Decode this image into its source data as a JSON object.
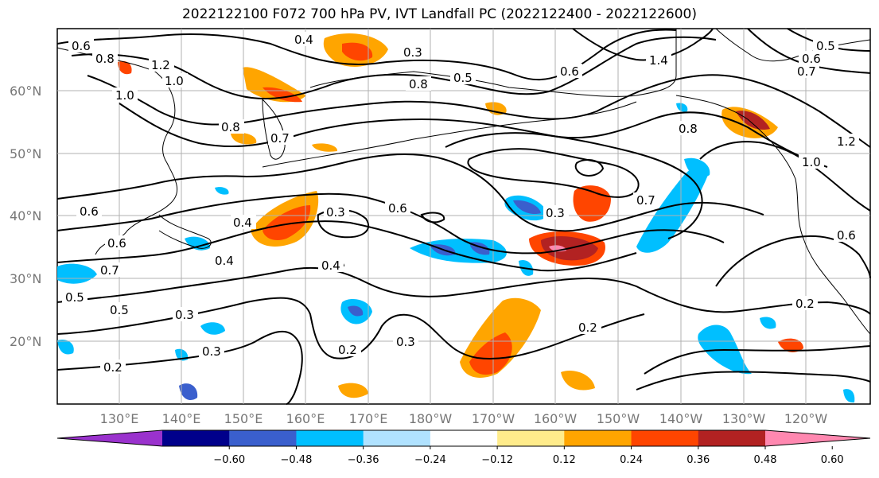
{
  "title": "2022122100 F072 700 hPa PV, IVT Landfall PC (2022122400 - 2022122600)",
  "lat_labels": [
    "60°N",
    "50°N",
    "40°N",
    "30°N",
    "20°N"
  ],
  "lon_labels": [
    "130°E",
    "140°E",
    "150°E",
    "160°E",
    "170°E",
    "180°W",
    "170°W",
    "160°W",
    "150°W",
    "140°W",
    "130°W",
    "120°W"
  ],
  "colorbar": {
    "ticks": [
      "−0.60",
      "−0.48",
      "−0.36",
      "−0.24",
      "−0.12",
      "0.12",
      "0.24",
      "0.36",
      "0.48",
      "0.60"
    ],
    "colors": [
      "#9a32cd",
      "#00008b",
      "#3a5fcd",
      "#00bfff",
      "#b0e2ff",
      "#ffffff",
      "#ffec8b",
      "#ffa500",
      "#ff4500",
      "#b22222",
      "#ff88b0"
    ]
  },
  "contour_labels": [
    "0.6",
    "0.8",
    "1.2",
    "1.0",
    "1.0",
    "0.4",
    "0.3",
    "0.8",
    "0.5",
    "0.6",
    "1.4",
    "0.5",
    "0.6",
    "0.7",
    "0.8",
    "0.7",
    "0.8",
    "1.2",
    "1.0",
    "0.6",
    "0.3",
    "0.6",
    "0.3",
    "0.7",
    "0.4",
    "0.4",
    "0.4",
    "0.6",
    "0.7",
    "0.5",
    "0.5",
    "0.3",
    "0.3",
    "0.2",
    "0.3",
    "0.2",
    "0.2",
    "0.2",
    "0.6"
  ],
  "colors": {
    "contour": "#000000",
    "grid": "#b0b0b0",
    "tick_label": "#777777"
  }
}
